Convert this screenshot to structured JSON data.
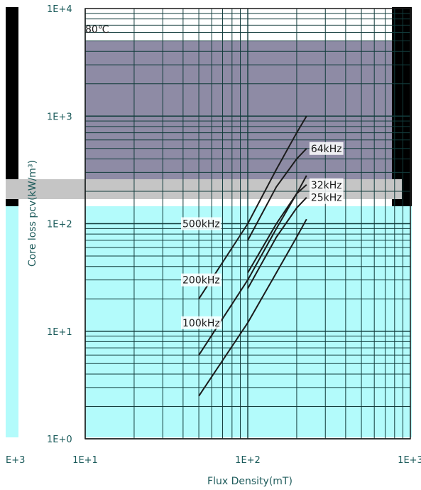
{
  "chart_data": {
    "type": "line",
    "xlabel": "Flux Density(mT)",
    "ylabel": "Core loss pcv(kW/m³)",
    "x_scale": "log",
    "y_scale": "log",
    "xlim": [
      10,
      1000
    ],
    "ylim": [
      1,
      10000
    ],
    "x_tick_labels": [
      "1E+1",
      "1E+2",
      "1E+3"
    ],
    "y_tick_labels": [
      "1E+0",
      "1E+1",
      "1E+2",
      "1E+3",
      "1E+4"
    ],
    "left_edge_label": "E+3",
    "temperature": "80℃",
    "grid": true,
    "series": [
      {
        "name": "25kHz",
        "points": [
          [
            100,
            25
          ],
          [
            150,
            75
          ],
          [
            200,
            140
          ],
          [
            230,
            175
          ]
        ]
      },
      {
        "name": "32kHz",
        "points": [
          [
            100,
            35
          ],
          [
            150,
            100
          ],
          [
            200,
            190
          ],
          [
            230,
            230
          ]
        ]
      },
      {
        "name": "64kHz",
        "points": [
          [
            100,
            70
          ],
          [
            150,
            220
          ],
          [
            200,
            400
          ],
          [
            230,
            500
          ]
        ]
      },
      {
        "name": "100kHz",
        "points": [
          [
            50,
            2.5
          ],
          [
            100,
            12
          ],
          [
            150,
            35
          ],
          [
            200,
            75
          ],
          [
            230,
            110
          ]
        ]
      },
      {
        "name": "200kHz",
        "points": [
          [
            50,
            6
          ],
          [
            100,
            30
          ],
          [
            150,
            90
          ],
          [
            200,
            190
          ],
          [
            230,
            280
          ]
        ]
      },
      {
        "name": "500kHz",
        "points": [
          [
            50,
            20
          ],
          [
            100,
            100
          ],
          [
            150,
            320
          ],
          [
            200,
            700
          ],
          [
            230,
            1000
          ]
        ]
      }
    ]
  }
}
